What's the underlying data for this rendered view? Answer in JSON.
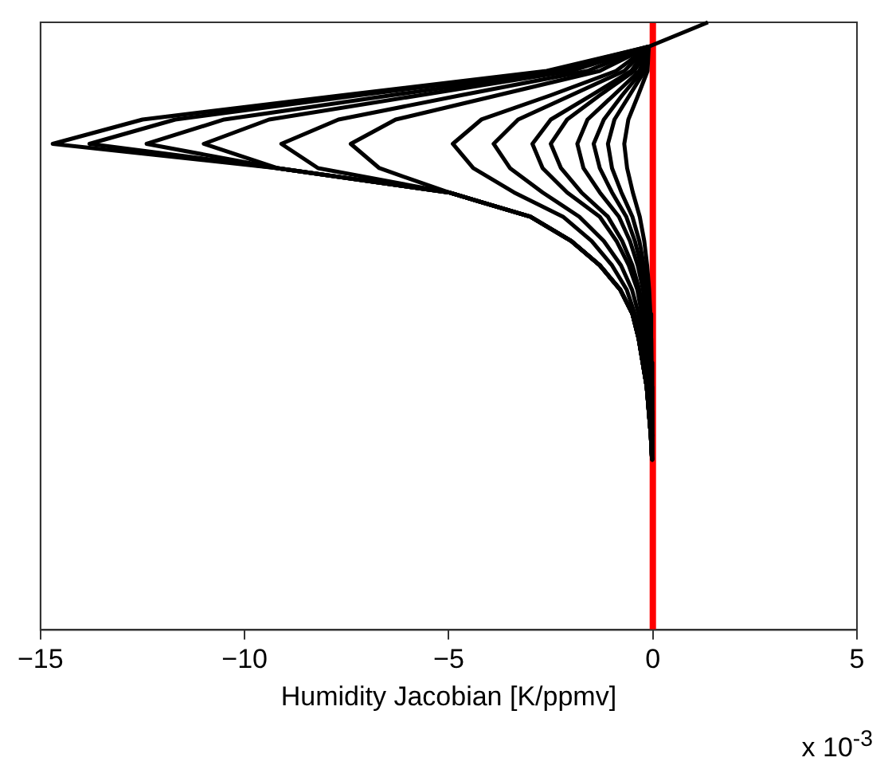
{
  "chart_data": {
    "type": "line",
    "orientation": "horizontal",
    "xlabel": "Humidity Jacobian [K/ppmv]",
    "annotations": [
      "x 10$^{-3}$"
    ],
    "categories": [
      null,
      null,
      null,
      null,
      null,
      null,
      null,
      null,
      null,
      null,
      null,
      null,
      null,
      null,
      null,
      null,
      null,
      null,
      null,
      null,
      null,
      null,
      null,
      null,
      null,
      null
    ],
    "xlim": [
      -15,
      5
    ],
    "xticks": [
      {
        "value": -15,
        "label": "−15"
      },
      {
        "value": -10,
        "label": "−10"
      },
      {
        "value": -5,
        "label": "−5"
      },
      0,
      5
    ],
    "tick_labels": "x",
    "grid": false,
    "legend": false,
    "marker": "none",
    "line_style": "solid",
    "ref_lines": [
      {
        "axis": "x",
        "value": 0,
        "color": "#ff0000"
      }
    ],
    "series": [
      {
        "color": "#000000",
        "values": [
          1.35,
          -0.1,
          -2.6,
          -7.6,
          -12.5,
          -14.7,
          -9.2,
          -5.0,
          -3.0,
          -2.0,
          -1.3,
          -0.8,
          -0.5,
          -0.35,
          -0.25,
          -0.15,
          -0.1,
          -0.05,
          -0.02,
          null,
          null,
          null,
          null,
          null,
          null,
          null
        ]
      },
      {
        "color": "#000000",
        "values": [
          null,
          -0.1,
          -2.5,
          -7.2,
          -11.7,
          -13.8,
          -9.2,
          -5.0,
          -3.0,
          -2.0,
          -1.3,
          -0.8,
          -0.5,
          -0.35,
          -0.25,
          -0.15,
          -0.1,
          -0.05,
          -0.02,
          null,
          null,
          null,
          null,
          null,
          null,
          null
        ]
      },
      {
        "color": "#000000",
        "values": [
          null,
          -0.1,
          -2.2,
          -6.4,
          -10.5,
          -12.4,
          -9.2,
          -5.0,
          -3.0,
          -2.0,
          -1.3,
          -0.8,
          -0.5,
          -0.35,
          -0.25,
          -0.15,
          -0.1,
          -0.05,
          -0.02,
          null,
          null,
          null,
          null,
          null,
          null,
          null
        ]
      },
      {
        "color": "#000000",
        "values": [
          null,
          -0.1,
          -2.0,
          -5.7,
          -9.4,
          -11.0,
          -9.2,
          -5.0,
          -3.0,
          -2.0,
          -1.3,
          -0.8,
          -0.5,
          -0.35,
          -0.25,
          -0.15,
          -0.1,
          -0.05,
          -0.02,
          null,
          null,
          null,
          null,
          null,
          null,
          null
        ]
      },
      {
        "color": "#000000",
        "values": [
          null,
          -0.1,
          -1.6,
          -4.7,
          -7.7,
          -9.1,
          -8.2,
          -5.0,
          -3.0,
          -2.0,
          -1.3,
          -0.8,
          -0.5,
          -0.35,
          -0.25,
          -0.15,
          -0.1,
          -0.05,
          -0.02,
          null,
          null,
          null,
          null,
          null,
          null,
          null
        ]
      },
      {
        "color": "#000000",
        "values": [
          null,
          -0.1,
          -1.3,
          -3.8,
          -6.3,
          -7.4,
          -6.7,
          -5.0,
          -3.0,
          -2.0,
          -1.3,
          -0.8,
          -0.5,
          -0.35,
          -0.25,
          -0.15,
          -0.1,
          -0.05,
          -0.02,
          null,
          null,
          null,
          null,
          null,
          null,
          null
        ]
      },
      {
        "color": "#000000",
        "values": [
          null,
          -0.1,
          -0.9,
          -2.5,
          -4.2,
          -4.9,
          -4.4,
          -3.4,
          -2.2,
          -1.5,
          -1.0,
          -0.64,
          -0.44,
          -0.29,
          -0.2,
          -0.15,
          -0.1,
          -0.05,
          -0.02,
          null,
          null,
          null,
          null,
          null,
          null,
          null
        ]
      },
      {
        "color": "#000000",
        "values": [
          null,
          -0.1,
          -0.7,
          -2.0,
          -3.3,
          -3.9,
          -3.5,
          -2.7,
          -1.8,
          -1.2,
          -0.78,
          -0.51,
          -0.35,
          -0.23,
          -0.16,
          -0.12,
          -0.08,
          -0.05,
          -0.02,
          null,
          null,
          null,
          null,
          null,
          null,
          null
        ]
      },
      {
        "color": "#000000",
        "values": [
          null,
          -0.1,
          -0.53,
          -1.5,
          -2.5,
          -2.95,
          -2.7,
          -2.1,
          -1.3,
          -0.89,
          -0.59,
          -0.38,
          -0.27,
          -0.18,
          -0.12,
          -0.09,
          -0.06,
          -0.04,
          -0.02,
          null,
          null,
          null,
          null,
          null,
          null,
          null
        ]
      },
      {
        "color": "#000000",
        "values": [
          null,
          -0.1,
          -0.45,
          -1.3,
          -2.1,
          -2.5,
          -2.25,
          -1.75,
          -1.1,
          -0.75,
          -0.5,
          -0.33,
          -0.23,
          -0.15,
          -0.1,
          -0.08,
          -0.05,
          -0.03,
          -0.02,
          null,
          null,
          null,
          null,
          null,
          null,
          null
        ]
      },
      {
        "color": "#000000",
        "values": [
          null,
          -0.1,
          -0.33,
          -0.96,
          -1.6,
          -1.85,
          -1.7,
          -1.3,
          -0.83,
          -0.56,
          -0.37,
          -0.24,
          -0.17,
          -0.11,
          -0.07,
          -0.06,
          -0.04,
          -0.03,
          -0.01,
          null,
          null,
          null,
          null,
          null,
          null,
          null
        ]
      },
      {
        "color": "#000000",
        "values": [
          null,
          -0.1,
          -0.26,
          -0.75,
          -1.2,
          -1.45,
          -1.3,
          -1.0,
          -0.65,
          -0.44,
          -0.29,
          -0.19,
          -0.13,
          -0.09,
          -0.06,
          -0.04,
          -0.03,
          -0.02,
          -0.01,
          null,
          null,
          null,
          null,
          null,
          null,
          null
        ]
      },
      {
        "color": "#000000",
        "values": [
          null,
          -0.1,
          -0.2,
          -0.57,
          -0.94,
          -1.1,
          -1.0,
          -0.77,
          -0.5,
          -0.33,
          -0.22,
          -0.14,
          -0.1,
          -0.07,
          -0.04,
          -0.03,
          -0.02,
          -0.01,
          null,
          null,
          null,
          null,
          null,
          null,
          null,
          null
        ]
      },
      {
        "color": "#000000",
        "values": [
          null,
          -0.1,
          -0.13,
          -0.36,
          -0.6,
          -0.7,
          -0.63,
          -0.49,
          -0.32,
          -0.21,
          -0.14,
          -0.09,
          -0.06,
          -0.04,
          -0.03,
          -0.02,
          -0.01,
          -0.01,
          null,
          null,
          null,
          null,
          null,
          null,
          null,
          null
        ]
      }
    ]
  }
}
